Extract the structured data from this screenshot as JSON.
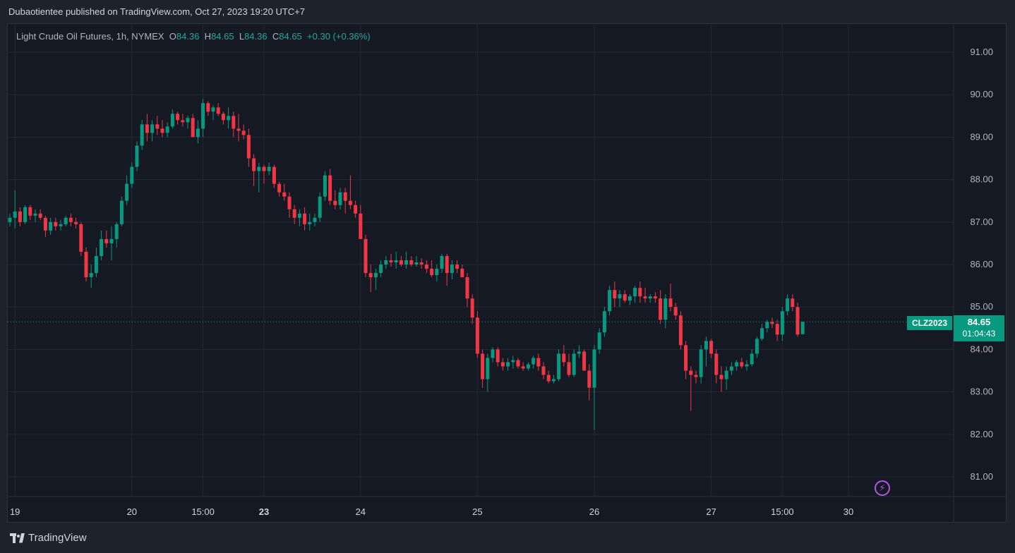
{
  "header": {
    "published_text": "Dubaotientee published on TradingView.com, Oct 27, 2023 19:20 UTC+7"
  },
  "legend": {
    "instrument": "Light Crude Oil Futures, 1h, NYMEX",
    "open_label": "O",
    "open": "84.36",
    "high_label": "H",
    "high": "84.65",
    "low_label": "L",
    "low": "84.36",
    "close_label": "C",
    "close": "84.65",
    "change": "+0.30 (+0.36%)"
  },
  "price_tag": {
    "symbol": "CLZ2023",
    "price": "84.65",
    "countdown": "01:04:43"
  },
  "footer": {
    "brand": "TradingView"
  },
  "colors": {
    "up": "#089981",
    "down": "#f23645",
    "background": "#151924",
    "grid": "#232734"
  },
  "icons": {
    "alert": "lightning-bolt-icon",
    "logo": "tradingview-logo-icon"
  },
  "chart_data": {
    "type": "candlestick",
    "title": "Light Crude Oil Futures, 1h, NYMEX",
    "xlabel": "",
    "ylabel": "",
    "ylim": [
      80.5,
      91.5
    ],
    "yticks": [
      "81.00",
      "82.00",
      "83.00",
      "84.00",
      "85.00",
      "86.00",
      "87.00",
      "88.00",
      "89.00",
      "90.00",
      "91.00"
    ],
    "xticks": [
      {
        "label": "19",
        "index": 1,
        "bold": false
      },
      {
        "label": "20",
        "index": 24,
        "bold": false
      },
      {
        "label": "15:00",
        "index": 38,
        "bold": false
      },
      {
        "label": "23",
        "index": 50,
        "bold": true
      },
      {
        "label": "24",
        "index": 69,
        "bold": false
      },
      {
        "label": "25",
        "index": 92,
        "bold": false
      },
      {
        "label": "26",
        "index": 115,
        "bold": false
      },
      {
        "label": "27",
        "index": 138,
        "bold": false
      },
      {
        "label": "15:00",
        "index": 152,
        "bold": false
      },
      {
        "label": "30",
        "index": 165,
        "bold": false
      }
    ],
    "grid": true,
    "last_price": 84.65,
    "candles": [
      [
        87.0,
        87.2,
        86.9,
        87.1
      ],
      [
        87.1,
        87.75,
        86.85,
        87.25
      ],
      [
        87.25,
        87.35,
        86.9,
        87.0
      ],
      [
        87.0,
        87.4,
        86.95,
        87.35
      ],
      [
        87.35,
        87.4,
        87.05,
        87.15
      ],
      [
        87.15,
        87.3,
        87.0,
        87.2
      ],
      [
        87.2,
        87.3,
        87.05,
        87.1
      ],
      [
        87.1,
        87.15,
        86.65,
        86.8
      ],
      [
        86.8,
        87.1,
        86.7,
        87.0
      ],
      [
        87.0,
        87.1,
        86.8,
        86.9
      ],
      [
        86.9,
        87.05,
        86.8,
        86.95
      ],
      [
        86.95,
        87.15,
        86.9,
        87.1
      ],
      [
        87.1,
        87.2,
        86.9,
        87.0
      ],
      [
        87.0,
        87.1,
        86.85,
        86.95
      ],
      [
        86.95,
        87.0,
        86.2,
        86.3
      ],
      [
        86.3,
        86.4,
        85.6,
        85.7
      ],
      [
        85.7,
        86.0,
        85.45,
        85.8
      ],
      [
        85.8,
        86.4,
        85.7,
        86.2
      ],
      [
        86.2,
        86.8,
        86.1,
        86.6
      ],
      [
        86.6,
        86.8,
        86.4,
        86.5
      ],
      [
        86.5,
        86.9,
        86.1,
        86.6
      ],
      [
        86.6,
        87.0,
        86.4,
        86.95
      ],
      [
        86.95,
        87.6,
        86.9,
        87.5
      ],
      [
        87.5,
        88.1,
        87.4,
        87.9
      ],
      [
        87.9,
        88.4,
        87.8,
        88.3
      ],
      [
        88.3,
        88.9,
        88.2,
        88.8
      ],
      [
        88.8,
        89.4,
        88.7,
        89.3
      ],
      [
        89.3,
        89.55,
        88.9,
        89.1
      ],
      [
        89.1,
        89.4,
        88.9,
        89.3
      ],
      [
        89.3,
        89.5,
        89.05,
        89.2
      ],
      [
        89.2,
        89.4,
        89.0,
        89.1
      ],
      [
        89.1,
        89.35,
        89.0,
        89.25
      ],
      [
        89.25,
        89.65,
        89.2,
        89.55
      ],
      [
        89.55,
        89.6,
        89.3,
        89.4
      ],
      [
        89.4,
        89.55,
        89.25,
        89.35
      ],
      [
        89.35,
        89.5,
        89.2,
        89.45
      ],
      [
        89.45,
        89.55,
        89.1,
        89.0
      ],
      [
        89.0,
        89.4,
        88.85,
        89.2
      ],
      [
        89.2,
        89.9,
        89.0,
        89.8
      ],
      [
        89.8,
        89.85,
        89.5,
        89.6
      ],
      [
        89.6,
        89.75,
        89.4,
        89.7
      ],
      [
        89.7,
        89.8,
        89.5,
        89.55
      ],
      [
        89.55,
        89.6,
        89.3,
        89.4
      ],
      [
        89.4,
        89.7,
        89.2,
        89.5
      ],
      [
        89.5,
        89.6,
        89.0,
        89.2
      ],
      [
        89.2,
        89.55,
        88.9,
        89.15
      ],
      [
        89.15,
        89.3,
        88.95,
        89.05
      ],
      [
        89.05,
        89.2,
        88.3,
        88.5
      ],
      [
        88.5,
        88.6,
        87.85,
        88.2
      ],
      [
        88.2,
        88.4,
        87.7,
        88.3
      ],
      [
        88.3,
        88.35,
        87.9,
        88.2
      ],
      [
        88.2,
        88.4,
        88.1,
        88.3
      ],
      [
        88.3,
        88.35,
        87.8,
        87.9
      ],
      [
        87.9,
        87.95,
        87.6,
        87.7
      ],
      [
        87.7,
        87.9,
        87.5,
        87.6
      ],
      [
        87.6,
        87.7,
        87.1,
        87.3
      ],
      [
        87.3,
        87.4,
        86.95,
        87.1
      ],
      [
        87.1,
        87.3,
        86.9,
        87.2
      ],
      [
        87.2,
        87.35,
        86.8,
        86.95
      ],
      [
        86.95,
        87.2,
        86.8,
        87.0
      ],
      [
        87.0,
        87.2,
        86.9,
        87.1
      ],
      [
        87.1,
        87.7,
        87.0,
        87.6
      ],
      [
        87.6,
        88.2,
        87.5,
        88.1
      ],
      [
        88.1,
        88.25,
        87.4,
        87.5
      ],
      [
        87.5,
        87.75,
        87.3,
        87.4
      ],
      [
        87.4,
        87.8,
        87.3,
        87.7
      ],
      [
        87.7,
        87.8,
        87.2,
        87.5
      ],
      [
        87.5,
        88.1,
        87.3,
        87.4
      ],
      [
        87.4,
        87.5,
        87.1,
        87.2
      ],
      [
        87.2,
        87.4,
        86.6,
        86.6
      ],
      [
        86.6,
        86.7,
        85.7,
        85.8
      ],
      [
        85.8,
        86.0,
        85.35,
        85.7
      ],
      [
        85.7,
        85.9,
        85.4,
        85.8
      ],
      [
        85.8,
        86.1,
        85.7,
        86.0
      ],
      [
        86.0,
        86.2,
        85.9,
        86.1
      ],
      [
        86.1,
        86.25,
        85.95,
        86.05
      ],
      [
        86.05,
        86.3,
        85.9,
        86.1
      ],
      [
        86.1,
        86.2,
        85.95,
        86.0
      ],
      [
        86.0,
        86.3,
        85.9,
        86.1
      ],
      [
        86.1,
        86.2,
        85.95,
        86.0
      ],
      [
        86.0,
        86.2,
        85.95,
        86.05
      ],
      [
        86.05,
        86.15,
        85.9,
        86.0
      ],
      [
        86.0,
        86.1,
        85.8,
        85.9
      ],
      [
        85.9,
        86.1,
        85.7,
        85.75
      ],
      [
        85.75,
        86.0,
        85.6,
        85.9
      ],
      [
        85.9,
        86.25,
        85.8,
        86.2
      ],
      [
        86.2,
        86.25,
        85.5,
        85.8
      ],
      [
        85.8,
        86.1,
        85.65,
        86.0
      ],
      [
        86.0,
        86.1,
        85.8,
        85.9
      ],
      [
        85.9,
        86.0,
        85.7,
        85.7
      ],
      [
        85.7,
        85.8,
        85.0,
        85.2
      ],
      [
        85.2,
        85.3,
        84.6,
        84.75
      ],
      [
        84.75,
        84.9,
        83.8,
        83.9
      ],
      [
        83.9,
        84.0,
        83.1,
        83.3
      ],
      [
        83.3,
        83.9,
        83.0,
        83.8
      ],
      [
        83.8,
        84.05,
        83.7,
        84.0
      ],
      [
        84.0,
        84.05,
        83.6,
        83.7
      ],
      [
        83.7,
        83.8,
        83.5,
        83.6
      ],
      [
        83.6,
        83.8,
        83.5,
        83.7
      ],
      [
        83.7,
        83.85,
        83.55,
        83.75
      ],
      [
        83.75,
        83.8,
        83.55,
        83.6
      ],
      [
        83.6,
        83.7,
        83.5,
        83.55
      ],
      [
        83.55,
        83.7,
        83.5,
        83.65
      ],
      [
        83.65,
        83.85,
        83.55,
        83.8
      ],
      [
        83.8,
        83.9,
        83.5,
        83.6
      ],
      [
        83.6,
        83.7,
        83.3,
        83.4
      ],
      [
        83.4,
        83.5,
        83.2,
        83.25
      ],
      [
        83.25,
        83.4,
        83.2,
        83.3
      ],
      [
        83.3,
        84.0,
        83.25,
        83.9
      ],
      [
        83.9,
        84.1,
        83.6,
        83.7
      ],
      [
        83.7,
        83.9,
        83.35,
        83.4
      ],
      [
        83.4,
        84.0,
        83.35,
        83.9
      ],
      [
        83.9,
        84.1,
        83.8,
        83.95
      ],
      [
        83.95,
        84.0,
        83.5,
        83.5
      ],
      [
        83.5,
        83.65,
        82.8,
        83.1
      ],
      [
        83.1,
        84.1,
        82.1,
        84.0
      ],
      [
        84.0,
        84.5,
        83.9,
        84.4
      ],
      [
        84.4,
        85.0,
        84.3,
        84.9
      ],
      [
        84.9,
        85.5,
        84.8,
        85.4
      ],
      [
        85.4,
        85.6,
        85.0,
        85.2
      ],
      [
        85.2,
        85.4,
        85.0,
        85.3
      ],
      [
        85.3,
        85.4,
        85.1,
        85.15
      ],
      [
        85.15,
        85.3,
        85.05,
        85.25
      ],
      [
        85.25,
        85.5,
        85.1,
        85.45
      ],
      [
        85.45,
        85.6,
        85.1,
        85.25
      ],
      [
        85.25,
        85.45,
        85.1,
        85.2
      ],
      [
        85.2,
        85.3,
        85.1,
        85.25
      ],
      [
        85.25,
        85.35,
        85.1,
        85.2
      ],
      [
        85.2,
        85.4,
        84.6,
        84.7
      ],
      [
        84.7,
        85.3,
        84.5,
        85.2
      ],
      [
        85.2,
        85.55,
        84.9,
        85.0
      ],
      [
        85.0,
        85.1,
        84.7,
        84.8
      ],
      [
        84.8,
        84.9,
        84.0,
        84.1
      ],
      [
        84.1,
        84.2,
        83.3,
        83.5
      ],
      [
        83.5,
        83.6,
        82.55,
        83.4
      ],
      [
        83.4,
        83.5,
        83.2,
        83.35
      ],
      [
        83.35,
        84.1,
        83.2,
        84.0
      ],
      [
        84.0,
        84.3,
        83.6,
        84.2
      ],
      [
        84.2,
        84.25,
        83.8,
        83.9
      ],
      [
        83.9,
        84.0,
        83.2,
        83.4
      ],
      [
        83.4,
        83.6,
        83.0,
        83.3
      ],
      [
        83.3,
        83.6,
        83.05,
        83.5
      ],
      [
        83.5,
        83.7,
        83.4,
        83.6
      ],
      [
        83.6,
        83.75,
        83.5,
        83.7
      ],
      [
        83.7,
        83.8,
        83.55,
        83.6
      ],
      [
        83.6,
        83.75,
        83.5,
        83.65
      ],
      [
        83.65,
        84.0,
        83.6,
        83.9
      ],
      [
        83.9,
        84.3,
        83.8,
        84.25
      ],
      [
        84.25,
        84.6,
        84.2,
        84.5
      ],
      [
        84.5,
        84.7,
        84.4,
        84.65
      ],
      [
        84.65,
        84.75,
        84.5,
        84.6
      ],
      [
        84.6,
        84.7,
        84.2,
        84.35
      ],
      [
        84.35,
        85.0,
        84.2,
        84.9
      ],
      [
        84.9,
        85.3,
        84.8,
        85.2
      ],
      [
        85.2,
        85.3,
        84.9,
        85.0
      ],
      [
        85.0,
        85.1,
        84.3,
        84.35
      ],
      [
        84.36,
        84.65,
        84.36,
        84.65
      ]
    ]
  }
}
